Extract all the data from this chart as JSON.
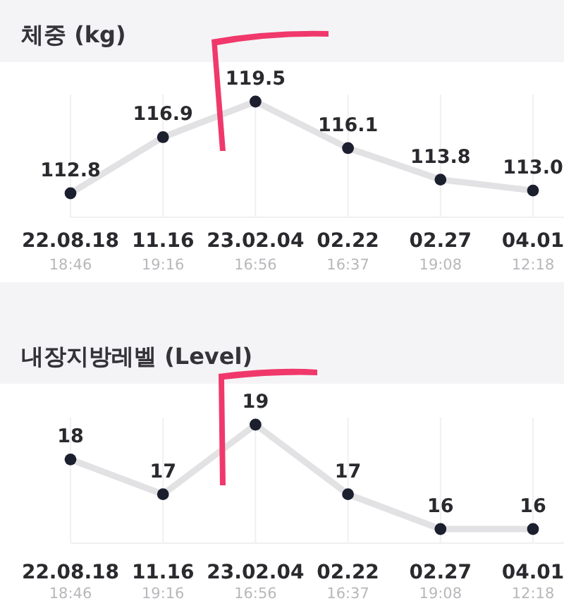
{
  "chart_data": [
    {
      "type": "line",
      "title": "체중 (kg)",
      "categories": [
        "22.08.18\n18:46",
        "11.16\n19:16",
        "23.02.04\n16:56",
        "02.22\n16:37",
        "02.27\n19:08",
        "04.01\n12:18"
      ],
      "series": [
        {
          "color": "#e2e2e4",
          "values": [
            112.8,
            116.9,
            119.5,
            116.1,
            113.8,
            113.0
          ],
          "value_labels": [
            "112.8",
            "116.9",
            "119.5",
            "116.1",
            "113.8",
            "113.0"
          ]
        }
      ],
      "marker": "circle",
      "grid": "x"
    },
    {
      "type": "line",
      "title": "내장지방레벨 (Level)",
      "categories": [
        "22.08.18\n18:46",
        "11.16\n19:16",
        "23.02.04\n16:56",
        "02.22\n16:37",
        "02.27\n19:08",
        "04.01\n12:18"
      ],
      "series": [
        {
          "color": "#e2e2e4",
          "values": [
            18,
            17,
            19,
            17,
            16,
            16
          ]
        }
      ],
      "data_labels": true,
      "marker": "circle",
      "grid": "x"
    }
  ]
}
